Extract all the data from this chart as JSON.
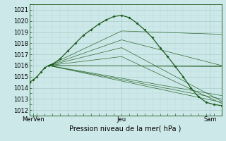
{
  "bg_color": "#cce8e8",
  "grid_color_major": "#aacccc",
  "grid_color_minor": "#bcd8d8",
  "line_color": "#1e5c1e",
  "xlim": [
    0,
    100
  ],
  "ylim": [
    1011.5,
    1021.5
  ],
  "yticks": [
    1012,
    1013,
    1014,
    1015,
    1016,
    1017,
    1018,
    1019,
    1020,
    1021
  ],
  "xtick_positions": [
    2,
    48,
    94
  ],
  "xtick_labels": [
    "MerVen",
    "Jeu",
    "Sam"
  ],
  "xlabel": "Pression niveau de la mer( hPa )",
  "main_line": {
    "x": [
      0,
      2,
      4,
      6,
      8,
      10,
      12,
      16,
      20,
      24,
      28,
      32,
      36,
      40,
      44,
      48,
      52,
      56,
      60,
      64,
      68,
      72,
      76,
      80,
      84,
      88,
      92,
      96,
      100
    ],
    "y": [
      1014.5,
      1014.7,
      1015.0,
      1015.4,
      1015.8,
      1016.0,
      1016.1,
      1016.6,
      1017.3,
      1018.0,
      1018.7,
      1019.2,
      1019.7,
      1020.1,
      1020.4,
      1020.5,
      1020.3,
      1019.8,
      1019.2,
      1018.5,
      1017.6,
      1016.8,
      1015.9,
      1015.0,
      1014.0,
      1013.2,
      1012.7,
      1012.5,
      1012.4
    ]
  },
  "convergence_x": 10,
  "convergence_y": 1016.0,
  "ensemble_lines": [
    {
      "x": [
        10,
        100
      ],
      "y": [
        1016.0,
        1016.0
      ]
    },
    {
      "x": [
        10,
        100
      ],
      "y": [
        1016.0,
        1015.9
      ]
    },
    {
      "x": [
        10,
        100
      ],
      "y": [
        1016.0,
        1013.3
      ]
    },
    {
      "x": [
        10,
        100
      ],
      "y": [
        1016.0,
        1013.0
      ]
    },
    {
      "x": [
        10,
        100
      ],
      "y": [
        1016.0,
        1012.7
      ]
    },
    {
      "x": [
        10,
        48,
        100
      ],
      "y": [
        1016.0,
        1018.3,
        1016.0
      ]
    },
    {
      "x": [
        10,
        48,
        100
      ],
      "y": [
        1016.0,
        1019.1,
        1018.8
      ]
    },
    {
      "x": [
        10,
        48,
        100
      ],
      "y": [
        1016.0,
        1017.6,
        1012.8
      ]
    },
    {
      "x": [
        10,
        48,
        100
      ],
      "y": [
        1016.0,
        1016.8,
        1012.6
      ]
    }
  ],
  "figsize": [
    3.2,
    2.0
  ],
  "dpi": 100,
  "tick_fontsize": 6,
  "xlabel_fontsize": 7
}
